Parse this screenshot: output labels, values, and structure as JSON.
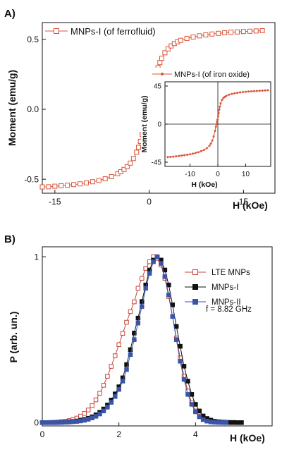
{
  "chart_data": [
    {
      "type": "scatter",
      "panel_label": "A)",
      "xlabel": "H (kOe)",
      "ylabel": "Moment (emu/g)",
      "xlim": [
        -17,
        20
      ],
      "ylim": [
        -0.6,
        0.62
      ],
      "xticks": [
        -15,
        0,
        15
      ],
      "xtick_labels": [
        "-15",
        "0",
        "15"
      ],
      "yticks": [
        -0.5,
        0.0,
        0.5
      ],
      "ytick_labels": [
        "-0.5",
        "0.0",
        "0.5"
      ],
      "legend_position": "top-left",
      "grid": false,
      "series": [
        {
          "name": "MNPs-I (of ferrofluid)",
          "color": "#d9553b",
          "marker": "open-square",
          "x": [
            -17,
            -16,
            -15,
            -14,
            -13,
            -12,
            -11,
            -10,
            -9,
            -8,
            -7,
            -6,
            -5,
            -4.5,
            -4,
            -3.5,
            -3,
            -2.5,
            -2,
            -1.7,
            -1.4,
            -1.1,
            -0.8,
            -0.6,
            -0.4,
            -0.2,
            0,
            0.2,
            0.4,
            0.6,
            0.8,
            1.1,
            1.4,
            1.7,
            2,
            2.5,
            3,
            3.5,
            4,
            4.5,
            5,
            6,
            7,
            8,
            9,
            10,
            11,
            12,
            13,
            14,
            15,
            16,
            17,
            18
          ],
          "y": [
            -0.555,
            -0.554,
            -0.55,
            -0.547,
            -0.543,
            -0.538,
            -0.533,
            -0.526,
            -0.518,
            -0.509,
            -0.497,
            -0.481,
            -0.46,
            -0.446,
            -0.43,
            -0.41,
            -0.385,
            -0.352,
            -0.307,
            -0.272,
            -0.229,
            -0.179,
            -0.124,
            -0.084,
            -0.043,
            -0.001,
            0.04,
            0.081,
            0.123,
            0.163,
            0.2,
            0.252,
            0.297,
            0.334,
            0.365,
            0.404,
            0.432,
            0.453,
            0.47,
            0.483,
            0.493,
            0.507,
            0.517,
            0.525,
            0.532,
            0.538,
            0.543,
            0.547,
            0.551,
            0.553,
            0.556,
            0.558,
            0.56,
            0.562
          ]
        }
      ],
      "inset": {
        "type": "scatter",
        "xlabel": "H (kOe)",
        "ylabel": "Moment (emu/g)",
        "xlim": [
          -19,
          19
        ],
        "ylim": [
          -50,
          50
        ],
        "xticks": [
          -10,
          0,
          10
        ],
        "xtick_labels": [
          "-10",
          "0",
          "10"
        ],
        "yticks": [
          -45,
          0,
          45
        ],
        "ytick_labels": [
          "-45",
          "0",
          "45"
        ],
        "series": [
          {
            "name": "MNPs-I (of iron oxide)",
            "color": "#d9553b",
            "marker": "dot",
            "x": [
              -18,
              -17,
              -16,
              -15,
              -14,
              -13,
              -12,
              -11,
              -10,
              -9,
              -8,
              -7,
              -6,
              -5,
              -4,
              -3,
              -2.5,
              -2,
              -1.5,
              -1,
              -0.7,
              -0.5,
              -0.3,
              -0.1,
              0.1,
              0.3,
              0.5,
              0.7,
              1,
              1.5,
              2,
              2.5,
              3,
              4,
              5,
              6,
              7,
              8,
              9,
              10,
              11,
              12,
              13,
              14,
              15,
              16,
              17,
              18
            ],
            "y": [
              -39,
              -38.7,
              -38.4,
              -38,
              -37.6,
              -37.2,
              -36.7,
              -36.2,
              -35.6,
              -34.9,
              -34.1,
              -33.2,
              -32,
              -30.5,
              -28.5,
              -25.5,
              -23,
              -19.5,
              -14.5,
              -8,
              -3,
              0,
              3,
              5.5,
              9,
              13,
              17,
              20.5,
              24.5,
              28.5,
              30.8,
              32.2,
              33.3,
              34.8,
              35.7,
              36.4,
              37,
              37.5,
              37.9,
              38.2,
              38.5,
              38.8,
              39,
              39.2,
              39.4,
              39.6,
              39.8,
              40
            ]
          }
        ]
      }
    },
    {
      "type": "line",
      "panel_label": "B)",
      "xlabel": "H (kOe)",
      "ylabel": "P (arb. un.)",
      "xlim": [
        0,
        6
      ],
      "ylim": [
        -0.02,
        1.06
      ],
      "xticks": [
        0,
        2,
        4
      ],
      "xtick_labels": [
        "0",
        "2",
        "4"
      ],
      "yticks": [
        0,
        1
      ],
      "ytick_labels": [
        "0",
        "1"
      ],
      "legend_position": "top-right",
      "annotation": "f = 8.82 GHz",
      "grid": false,
      "series": [
        {
          "name": "LTE MNPs",
          "color": "#c8453b",
          "marker": "open-square",
          "x": [
            0,
            0.1,
            0.2,
            0.3,
            0.4,
            0.5,
            0.6,
            0.7,
            0.8,
            0.9,
            1,
            1.1,
            1.2,
            1.3,
            1.4,
            1.5,
            1.6,
            1.7,
            1.8,
            1.9,
            2,
            2.1,
            2.2,
            2.3,
            2.4,
            2.5,
            2.6,
            2.7,
            2.8,
            2.9,
            3,
            3.1,
            3.2,
            3.3,
            3.4,
            3.5,
            3.6,
            3.7,
            3.8,
            3.9,
            4,
            4.1,
            4.2,
            4.3,
            4.4,
            4.5,
            4.6,
            4.7,
            4.8,
            4.9,
            5
          ],
          "y": [
            0,
            0,
            0.001,
            0.002,
            0.003,
            0.005,
            0.008,
            0.012,
            0.018,
            0.027,
            0.039,
            0.055,
            0.076,
            0.103,
            0.137,
            0.177,
            0.225,
            0.279,
            0.339,
            0.403,
            0.47,
            0.538,
            0.605,
            0.669,
            0.728,
            0.81,
            0.87,
            0.93,
            0.97,
            1.0,
            0.99,
            0.95,
            0.87,
            0.76,
            0.64,
            0.51,
            0.39,
            0.28,
            0.19,
            0.12,
            0.07,
            0.04,
            0.02,
            0.01,
            0.005,
            0.003,
            0.002,
            0.001,
            0,
            0,
            0
          ]
        },
        {
          "name": "MNPs-I",
          "color": "#111111",
          "marker": "filled-square",
          "x": [
            0,
            0.1,
            0.2,
            0.3,
            0.4,
            0.5,
            0.6,
            0.7,
            0.8,
            0.9,
            1,
            1.1,
            1.2,
            1.3,
            1.4,
            1.5,
            1.6,
            1.7,
            1.8,
            1.9,
            2,
            2.1,
            2.2,
            2.3,
            2.4,
            2.5,
            2.6,
            2.7,
            2.8,
            2.9,
            3,
            3.1,
            3.2,
            3.3,
            3.4,
            3.5,
            3.6,
            3.7,
            3.8,
            3.9,
            4,
            4.1,
            4.2,
            4.3,
            4.4,
            4.5,
            4.6,
            4.7,
            4.8,
            4.9,
            5,
            5.1,
            5.2
          ],
          "y": [
            0,
            0,
            0,
            0,
            0.001,
            0.002,
            0.003,
            0.005,
            0.007,
            0.01,
            0.014,
            0.019,
            0.026,
            0.035,
            0.047,
            0.062,
            0.082,
            0.106,
            0.136,
            0.173,
            0.216,
            0.27,
            0.35,
            0.44,
            0.54,
            0.63,
            0.73,
            0.83,
            0.92,
            0.98,
            1.0,
            0.98,
            0.92,
            0.83,
            0.71,
            0.58,
            0.46,
            0.34,
            0.25,
            0.17,
            0.11,
            0.07,
            0.04,
            0.025,
            0.015,
            0.008,
            0.005,
            0.003,
            0.002,
            0.001,
            0.001,
            0,
            0
          ]
        },
        {
          "name": "MNPs-II",
          "color": "#3a55a8",
          "marker": "filled-square",
          "x": [
            0,
            0.1,
            0.2,
            0.3,
            0.4,
            0.5,
            0.6,
            0.7,
            0.8,
            0.9,
            1,
            1.1,
            1.2,
            1.3,
            1.4,
            1.5,
            1.6,
            1.7,
            1.8,
            1.9,
            2,
            2.1,
            2.2,
            2.3,
            2.4,
            2.5,
            2.6,
            2.7,
            2.8,
            2.9,
            3,
            3.1,
            3.2,
            3.3,
            3.4,
            3.5,
            3.6,
            3.7,
            3.8,
            3.9,
            4,
            4.1,
            4.2,
            4.3,
            4.4,
            4.5,
            4.6,
            4.7,
            4.8
          ],
          "y": [
            0,
            0,
            0,
            0,
            0,
            0.001,
            0.002,
            0.003,
            0.005,
            0.007,
            0.01,
            0.014,
            0.02,
            0.028,
            0.038,
            0.052,
            0.07,
            0.093,
            0.122,
            0.157,
            0.2,
            0.25,
            0.32,
            0.41,
            0.5,
            0.6,
            0.7,
            0.81,
            0.9,
            0.97,
            1.0,
            0.96,
            0.88,
            0.77,
            0.64,
            0.5,
            0.37,
            0.26,
            0.17,
            0.11,
            0.065,
            0.035,
            0.018,
            0.009,
            0.004,
            0.002,
            0.001,
            0,
            0
          ]
        }
      ]
    }
  ]
}
